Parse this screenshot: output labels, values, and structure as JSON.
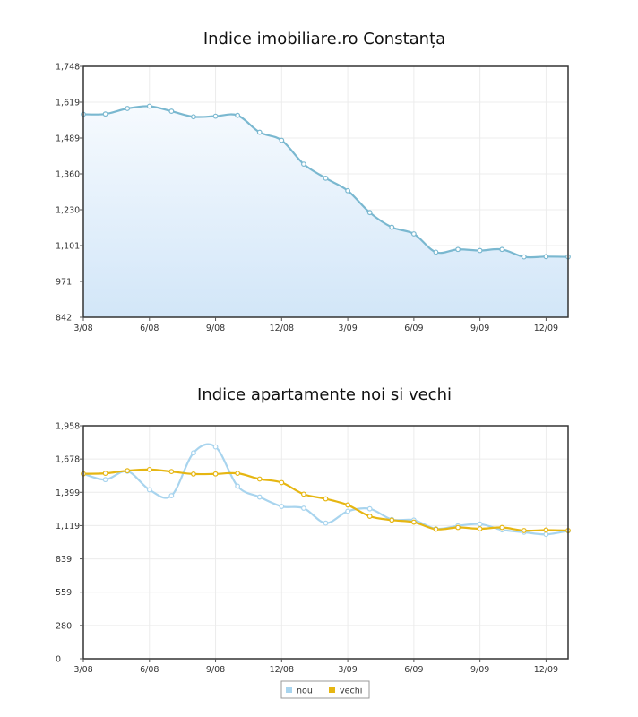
{
  "chart_data": [
    {
      "type": "area",
      "title": "Indice imobiliare.ro Constanța",
      "xlabel": "",
      "ylabel": "",
      "x_tick_labels": [
        "3/08",
        "6/08",
        "9/08",
        "12/08",
        "3/09",
        "6/09",
        "9/09",
        "12/09"
      ],
      "y_tick_labels": [
        "842",
        "971",
        "1,101",
        "1,230",
        "1,360",
        "1,489",
        "1,619",
        "1,748"
      ],
      "ylim": [
        842,
        1748
      ],
      "x_index_range": [
        0,
        22
      ],
      "grid": true,
      "series": [
        {
          "color": "#7ab8d0",
          "values": [
            1575,
            1576,
            1596,
            1604,
            1586,
            1566,
            1568,
            1571,
            1510,
            1481,
            1395,
            1344,
            1299,
            1220,
            1167,
            1143,
            1077,
            1087,
            1083,
            1087,
            1060,
            1061,
            1060
          ]
        }
      ]
    },
    {
      "type": "line",
      "title": "Indice apartamente noi si vechi",
      "xlabel": "",
      "ylabel": "",
      "x_tick_labels": [
        "3/08",
        "6/08",
        "9/08",
        "12/08",
        "3/09",
        "6/09",
        "9/09",
        "12/09"
      ],
      "y_tick_labels": [
        "0",
        "280",
        "559",
        "839",
        "1,119",
        "1,399",
        "1,678",
        "1,958"
      ],
      "ylim": [
        0,
        1958
      ],
      "x_index_range": [
        0,
        22
      ],
      "grid": true,
      "legend": {
        "position": "bottom-center",
        "entries": [
          "nou",
          "vechi"
        ]
      },
      "series": [
        {
          "name": "nou",
          "color": "#a8d4ee",
          "values": [
            1554,
            1505,
            1575,
            1420,
            1370,
            1730,
            1780,
            1450,
            1359,
            1280,
            1265,
            1140,
            1239,
            1260,
            1170,
            1165,
            1092,
            1117,
            1132,
            1083,
            1063,
            1045,
            1075
          ]
        },
        {
          "name": "vechi",
          "color": "#e6b612",
          "values": [
            1554,
            1558,
            1580,
            1590,
            1573,
            1552,
            1553,
            1558,
            1510,
            1480,
            1383,
            1344,
            1292,
            1197,
            1165,
            1148,
            1088,
            1103,
            1092,
            1103,
            1077,
            1081,
            1077
          ]
        }
      ]
    }
  ]
}
